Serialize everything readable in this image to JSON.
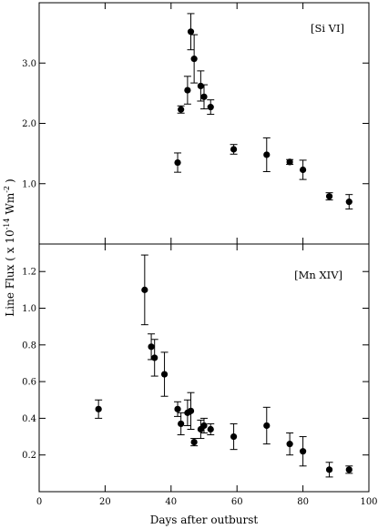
{
  "chart_data": [
    {
      "type": "scatter",
      "panel_label": "[Si VI]",
      "xlabel": "",
      "ylabel": "",
      "xlim": [
        0,
        100
      ],
      "ylim": [
        0.0,
        4.0
      ],
      "yticks": [
        1.0,
        2.0,
        3.0
      ],
      "ytick_labels": [
        "1.0",
        "2.0",
        "3.0"
      ],
      "grid": false,
      "points": [
        {
          "x": 42,
          "y": 1.35,
          "err": 0.16
        },
        {
          "x": 43,
          "y": 2.23,
          "err": 0.06
        },
        {
          "x": 45,
          "y": 2.55,
          "err": 0.23
        },
        {
          "x": 46,
          "y": 3.52,
          "err": 0.3
        },
        {
          "x": 47,
          "y": 3.07,
          "err": 0.4
        },
        {
          "x": 49,
          "y": 2.62,
          "err": 0.25
        },
        {
          "x": 50,
          "y": 2.44,
          "err": 0.2
        },
        {
          "x": 52,
          "y": 2.27,
          "err": 0.12
        },
        {
          "x": 59,
          "y": 1.57,
          "err": 0.08
        },
        {
          "x": 69,
          "y": 1.48,
          "err": 0.28
        },
        {
          "x": 76,
          "y": 1.36,
          "err": 0.04
        },
        {
          "x": 80,
          "y": 1.23,
          "err": 0.16
        },
        {
          "x": 88,
          "y": 0.79,
          "err": 0.06
        },
        {
          "x": 94,
          "y": 0.7,
          "err": 0.12
        }
      ]
    },
    {
      "type": "scatter",
      "panel_label": "[Mn XIV]",
      "xlabel": "Days after outburst",
      "ylabel": "Line Flux ( x 10",
      "ylabel_exp": "-14",
      "ylabel_unit": "Wm",
      "ylabel_unit_exp": "-2",
      "ylabel_close": ")",
      "xlim": [
        0,
        100
      ],
      "ylim": [
        0.0,
        1.35
      ],
      "xticks": [
        0,
        20,
        40,
        60,
        80,
        100
      ],
      "xtick_labels": [
        "0",
        "20",
        "40",
        "60",
        "80",
        "100"
      ],
      "yticks": [
        0.2,
        0.4,
        0.6,
        0.8,
        1.0,
        1.2
      ],
      "ytick_labels": [
        "0.2",
        "0.4",
        "0.6",
        "0.8",
        "1.0",
        "1.2"
      ],
      "grid": false,
      "points": [
        {
          "x": 18,
          "y": 0.45,
          "err": 0.05
        },
        {
          "x": 32,
          "y": 1.1,
          "err": 0.19
        },
        {
          "x": 34,
          "y": 0.79,
          "err": 0.07
        },
        {
          "x": 35,
          "y": 0.73,
          "err": 0.1
        },
        {
          "x": 38,
          "y": 0.64,
          "err": 0.12
        },
        {
          "x": 42,
          "y": 0.45,
          "err": 0.04
        },
        {
          "x": 43,
          "y": 0.37,
          "err": 0.06
        },
        {
          "x": 45,
          "y": 0.43,
          "err": 0.07
        },
        {
          "x": 46,
          "y": 0.44,
          "err": 0.1
        },
        {
          "x": 47,
          "y": 0.27,
          "err": 0.02
        },
        {
          "x": 49,
          "y": 0.34,
          "err": 0.05
        },
        {
          "x": 50,
          "y": 0.36,
          "err": 0.04
        },
        {
          "x": 52,
          "y": 0.34,
          "err": 0.03
        },
        {
          "x": 59,
          "y": 0.3,
          "err": 0.07
        },
        {
          "x": 69,
          "y": 0.36,
          "err": 0.1
        },
        {
          "x": 76,
          "y": 0.26,
          "err": 0.06
        },
        {
          "x": 80,
          "y": 0.22,
          "err": 0.08
        },
        {
          "x": 88,
          "y": 0.12,
          "err": 0.04
        },
        {
          "x": 94,
          "y": 0.12,
          "err": 0.02
        }
      ]
    }
  ]
}
